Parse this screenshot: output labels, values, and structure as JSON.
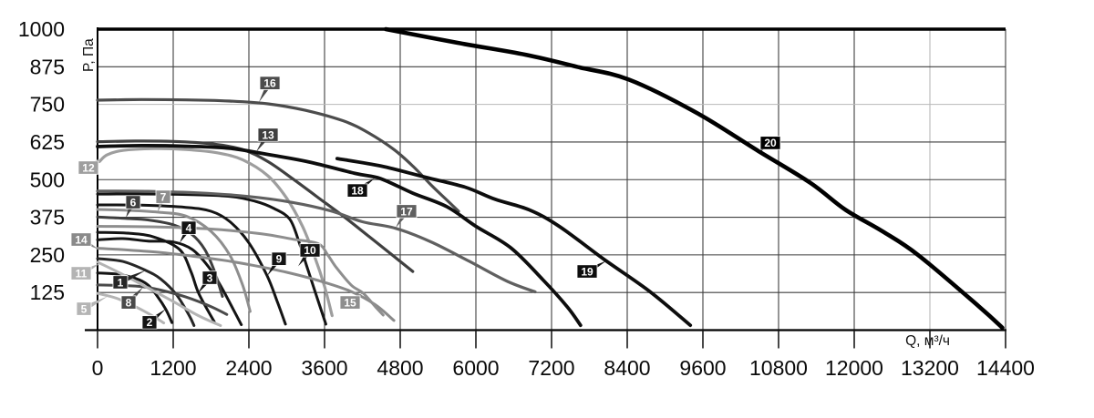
{
  "page": {
    "background": "#ffffff"
  },
  "chart_data": {
    "type": "line",
    "title": "",
    "xlabel": "Q, м³/ч",
    "ylabel": "P, Па",
    "xlim": [
      0,
      14400
    ],
    "ylim": [
      0,
      1000
    ],
    "x_ticks": [
      0,
      1200,
      2400,
      3600,
      4800,
      6000,
      7200,
      8400,
      9600,
      10800,
      12000,
      13200,
      14400
    ],
    "y_ticks": [
      125,
      250,
      375,
      500,
      625,
      750,
      875,
      1000
    ],
    "grid": "on",
    "legend": "none",
    "light_gridlines": {
      "x": [
        13200
      ],
      "y": [
        750
      ]
    },
    "grid_color": "#3f3f3f",
    "light_grid_color": "#b8b8b8",
    "axis_color": "#000000",
    "series": [
      {
        "name": "1",
        "color": "#262626",
        "width": 3,
        "points": [
          [
            0,
            238
          ],
          [
            400,
            228
          ],
          [
            770,
            198
          ],
          [
            1000,
            170
          ],
          [
            1250,
            118
          ],
          [
            1450,
            50
          ],
          [
            1530,
            15
          ]
        ]
      },
      {
        "name": "2",
        "color": "#141414",
        "width": 3,
        "points": [
          [
            0,
            190
          ],
          [
            300,
            186
          ],
          [
            600,
            172
          ],
          [
            800,
            150
          ],
          [
            950,
            112
          ],
          [
            1080,
            70
          ],
          [
            1180,
            25
          ]
        ]
      },
      {
        "name": "3",
        "color": "#141414",
        "width": 3,
        "points": [
          [
            0,
            325
          ],
          [
            500,
            322
          ],
          [
            900,
            309
          ],
          [
            1300,
            268
          ],
          [
            1480,
            195
          ],
          [
            1605,
            122
          ],
          [
            1850,
            28
          ]
        ]
      },
      {
        "name": "4",
        "color": "#141414",
        "width": 3,
        "points": [
          [
            0,
            300
          ],
          [
            400,
            304
          ],
          [
            800,
            296
          ],
          [
            1200,
            293
          ],
          [
            1500,
            268
          ],
          [
            1750,
            213
          ],
          [
            1950,
            148
          ],
          [
            2150,
            70
          ],
          [
            2280,
            18
          ]
        ]
      },
      {
        "name": "5",
        "color": "#b4b4b4",
        "width": 3,
        "points": [
          [
            0,
            122
          ],
          [
            300,
            106
          ],
          [
            600,
            78
          ],
          [
            850,
            50
          ],
          [
            1050,
            24
          ]
        ]
      },
      {
        "name": "6",
        "color": "#3e3e3e",
        "width": 3,
        "points": [
          [
            0,
            376
          ],
          [
            450,
            371
          ],
          [
            800,
            366
          ],
          [
            1200,
            350
          ],
          [
            1500,
            317
          ],
          [
            1700,
            268
          ],
          [
            1850,
            198
          ],
          [
            1980,
            112
          ]
        ]
      },
      {
        "name": "7",
        "color": "#8e8e8e",
        "width": 3,
        "points": [
          [
            0,
            401
          ],
          [
            500,
            398
          ],
          [
            950,
            392
          ],
          [
            1400,
            379
          ],
          [
            1800,
            328
          ],
          [
            2100,
            248
          ],
          [
            2300,
            150
          ],
          [
            2420,
            62
          ]
        ]
      },
      {
        "name": "8",
        "color": "#4a4a4a",
        "width": 3,
        "points": [
          [
            0,
            150
          ],
          [
            400,
            148
          ],
          [
            720,
            144
          ],
          [
            1000,
            133
          ],
          [
            1400,
            110
          ],
          [
            1800,
            78
          ],
          [
            2050,
            52
          ]
        ]
      },
      {
        "name": "9",
        "color": "#141414",
        "width": 3,
        "points": [
          [
            0,
            416
          ],
          [
            700,
            415
          ],
          [
            1400,
            408
          ],
          [
            1800,
            395
          ],
          [
            2100,
            360
          ],
          [
            2400,
            290
          ],
          [
            2690,
            180
          ],
          [
            2850,
            95
          ],
          [
            2980,
            20
          ]
        ]
      },
      {
        "name": "10",
        "color": "#141414",
        "width": 3,
        "points": [
          [
            0,
            452
          ],
          [
            1000,
            452
          ],
          [
            2000,
            446
          ],
          [
            2500,
            428
          ],
          [
            2800,
            404
          ],
          [
            3050,
            368
          ],
          [
            3200,
            290
          ],
          [
            3310,
            218
          ],
          [
            3450,
            128
          ],
          [
            3620,
            20
          ]
        ]
      },
      {
        "name": "11",
        "color": "#b4b4b4",
        "width": 3,
        "points": [
          [
            0,
            226
          ],
          [
            400,
            185
          ],
          [
            800,
            140
          ],
          [
            1200,
            95
          ],
          [
            1600,
            48
          ],
          [
            1950,
            15
          ]
        ]
      },
      {
        "name": "12",
        "color": "#9e9e9e",
        "width": 3.2,
        "points": [
          [
            30,
            560
          ],
          [
            150,
            582
          ],
          [
            400,
            597
          ],
          [
            900,
            603
          ],
          [
            1400,
            600
          ],
          [
            1900,
            589
          ],
          [
            2300,
            566
          ],
          [
            2700,
            513
          ],
          [
            3000,
            438
          ],
          [
            3250,
            345
          ],
          [
            3450,
            240
          ],
          [
            3600,
            145
          ],
          [
            3720,
            48
          ]
        ]
      },
      {
        "name": "13",
        "color": "#404040",
        "width": 3.2,
        "points": [
          [
            0,
            626
          ],
          [
            600,
            628
          ],
          [
            1200,
            627
          ],
          [
            1800,
            619
          ],
          [
            2300,
            600
          ],
          [
            2700,
            560
          ],
          [
            3100,
            502
          ],
          [
            3500,
            440
          ],
          [
            3900,
            378
          ],
          [
            4300,
            312
          ],
          [
            4700,
            245
          ],
          [
            5000,
            195
          ]
        ]
      },
      {
        "name": "14",
        "color": "#8a8a8a",
        "width": 3,
        "points": [
          [
            0,
            272
          ],
          [
            500,
            266
          ],
          [
            1000,
            258
          ],
          [
            1500,
            246
          ],
          [
            2000,
            232
          ],
          [
            2500,
            214
          ],
          [
            3000,
            192
          ],
          [
            3500,
            165
          ],
          [
            4000,
            130
          ],
          [
            4400,
            85
          ],
          [
            4700,
            32
          ]
        ]
      },
      {
        "name": "15",
        "color": "#8e8e8e",
        "width": 3,
        "points": [
          [
            0,
            345
          ],
          [
            900,
            343
          ],
          [
            1800,
            336
          ],
          [
            2600,
            320
          ],
          [
            3100,
            302
          ],
          [
            3500,
            287
          ],
          [
            3650,
            250
          ],
          [
            3780,
            210
          ],
          [
            4020,
            150
          ],
          [
            4210,
            123
          ],
          [
            4410,
            77
          ],
          [
            4530,
            50
          ]
        ]
      },
      {
        "name": "16",
        "color": "#4c4c4c",
        "width": 3.2,
        "points": [
          [
            0,
            764
          ],
          [
            700,
            766
          ],
          [
            1400,
            765
          ],
          [
            2100,
            761
          ],
          [
            2700,
            752
          ],
          [
            3300,
            730
          ],
          [
            3900,
            695
          ],
          [
            4300,
            655
          ],
          [
            4700,
            600
          ],
          [
            5000,
            545
          ],
          [
            5300,
            480
          ],
          [
            5550,
            430
          ],
          [
            5725,
            395
          ]
        ]
      },
      {
        "name": "17",
        "color": "#606060",
        "width": 3.2,
        "points": [
          [
            0,
            462
          ],
          [
            800,
            461
          ],
          [
            1600,
            456
          ],
          [
            2400,
            444
          ],
          [
            3100,
            424
          ],
          [
            3700,
            396
          ],
          [
            4200,
            360
          ],
          [
            4730,
            338
          ],
          [
            5300,
            292
          ],
          [
            5900,
            228
          ],
          [
            6500,
            162
          ],
          [
            6940,
            127
          ]
        ]
      },
      {
        "name": "18",
        "color": "#0d0d0d",
        "width": 3.8,
        "points": [
          [
            0,
            610
          ],
          [
            700,
            613
          ],
          [
            1400,
            611
          ],
          [
            2100,
            604
          ],
          [
            2800,
            580
          ],
          [
            3370,
            558
          ],
          [
            4100,
            520
          ],
          [
            4480,
            504
          ],
          [
            5000,
            455
          ],
          [
            5540,
            410
          ],
          [
            6000,
            345
          ],
          [
            6550,
            274
          ],
          [
            7060,
            168
          ],
          [
            7450,
            77
          ],
          [
            7660,
            16
          ]
        ]
      },
      {
        "name": "19",
        "color": "#0d0d0d",
        "width": 3.8,
        "points": [
          [
            3800,
            570
          ],
          [
            4500,
            545
          ],
          [
            5200,
            508
          ],
          [
            5830,
            475
          ],
          [
            6300,
            435
          ],
          [
            6840,
            400
          ],
          [
            7320,
            345
          ],
          [
            8040,
            234
          ],
          [
            8760,
            128
          ],
          [
            9400,
            16
          ]
        ]
      },
      {
        "name": "20",
        "color": "#000000",
        "width": 4.6,
        "points": [
          [
            4570,
            1000
          ],
          [
            5700,
            955
          ],
          [
            6790,
            915
          ],
          [
            7600,
            875
          ],
          [
            8430,
            832
          ],
          [
            9500,
            722
          ],
          [
            10480,
            595
          ],
          [
            11300,
            490
          ],
          [
            11860,
            400
          ],
          [
            12450,
            328
          ],
          [
            13010,
            250
          ],
          [
            13970,
            80
          ],
          [
            14350,
            8
          ]
        ]
      }
    ],
    "callouts": [
      {
        "name": "1",
        "color": "#262626",
        "box": [
          361,
          159
        ],
        "tip": [
          766,
          199
        ]
      },
      {
        "name": "2",
        "color": "#141414",
        "box": [
          824,
          26
        ],
        "tip": [
          1080,
          70
        ]
      },
      {
        "name": "3",
        "color": "#141414",
        "box": [
          1778,
          174
        ],
        "tip": [
          1590,
          122
        ]
      },
      {
        "name": "4",
        "color": "#141414",
        "box": [
          1446,
          340
        ],
        "tip": [
          1301,
          290
        ]
      },
      {
        "name": "5",
        "color": "#b4b4b4",
        "box": [
          -217,
          71
        ],
        "tip": [
          159,
          112
        ]
      },
      {
        "name": "6",
        "color": "#3e3e3e",
        "box": [
          564,
          425
        ],
        "tip": [
          448,
          373
        ]
      },
      {
        "name": "7",
        "color": "#8e8e8e",
        "box": [
          1041,
          443
        ],
        "tip": [
          954,
          393
        ]
      },
      {
        "name": "8",
        "color": "#4a4a4a",
        "box": [
          492,
          92
        ],
        "tip": [
          723,
          143
        ]
      },
      {
        "name": "9",
        "color": "#141414",
        "box": [
          2877,
          237
        ],
        "tip": [
          2689,
          180
        ]
      },
      {
        "name": "10",
        "color": "#141414",
        "box": [
          3369,
          265
        ],
        "tip": [
          3181,
          212
        ]
      },
      {
        "name": "11",
        "color": "#b4b4b4",
        "box": [
          -260,
          189
        ],
        "tip": [
          43,
          222
        ]
      },
      {
        "name": "12",
        "color": "#9e9e9e",
        "box": [
          -145,
          540
        ],
        "tip": [
          25,
          570
        ]
      },
      {
        "name": "13",
        "color": "#404040",
        "box": [
          2704,
          649
        ],
        "tip": [
          2516,
          592
        ]
      },
      {
        "name": "14",
        "color": "#8a8a8a",
        "box": [
          -260,
          301
        ],
        "tip": [
          10,
          269
        ]
      },
      {
        "name": "15",
        "color": "#8e8e8e",
        "box": [
          4005,
          92
        ],
        "tip": [
          4207,
          124
        ]
      },
      {
        "name": "16",
        "color": "#4c4c4c",
        "box": [
          2733,
          821
        ],
        "tip": [
          2559,
          757
        ]
      },
      {
        "name": "17",
        "color": "#606060",
        "box": [
          4901,
          395
        ],
        "tip": [
          4728,
          340
        ]
      },
      {
        "name": "18",
        "color": "#0d0d0d",
        "box": [
          4121,
          464
        ],
        "tip": [
          4395,
          505
        ]
      },
      {
        "name": "19",
        "color": "#0d0d0d",
        "box": [
          7764,
          195
        ],
        "tip": [
          8067,
          230
        ]
      },
      {
        "name": "20",
        "color": "#000000",
        "box": [
          10670,
          622
        ],
        "tip": [
          10481,
          590
        ]
      }
    ]
  }
}
